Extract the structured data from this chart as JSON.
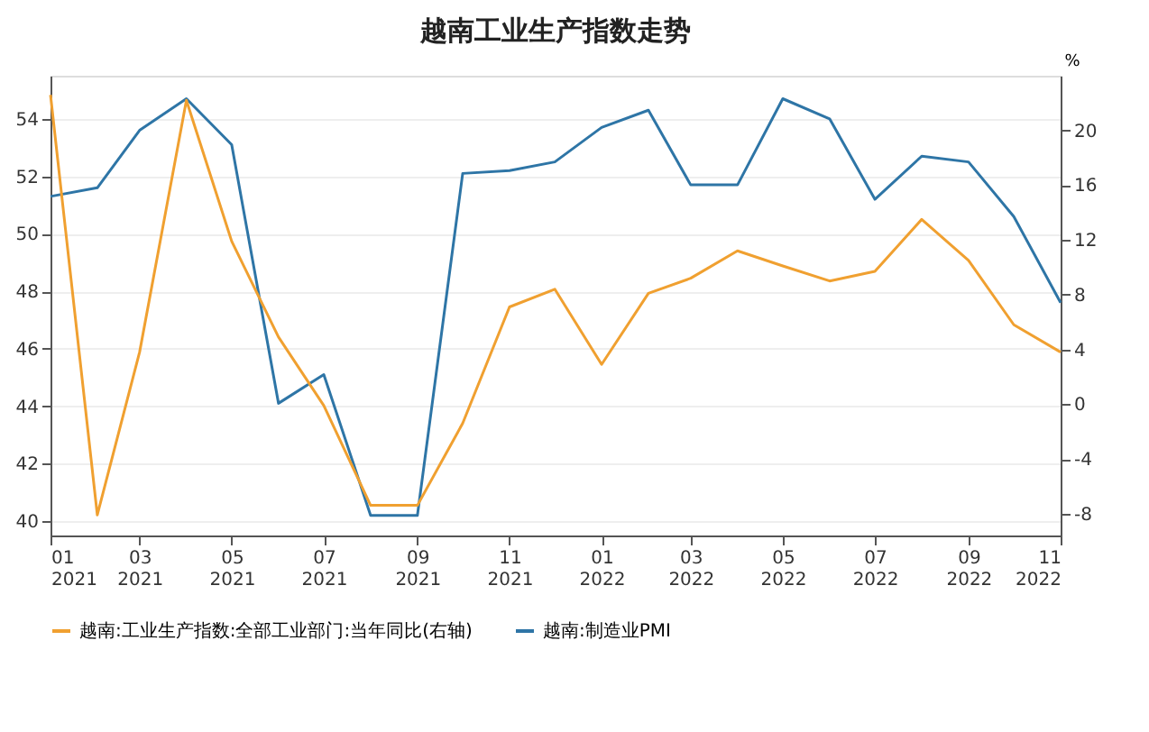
{
  "chart_data": {
    "type": "line",
    "title": "越南工业生产指数走势",
    "x": [
      "2021-01",
      "2021-02",
      "2021-03",
      "2021-04",
      "2021-05",
      "2021-06",
      "2021-07",
      "2021-08",
      "2021-09",
      "2021-10",
      "2021-11",
      "2021-12",
      "2022-01",
      "2022-02",
      "2022-03",
      "2022-04",
      "2022-05",
      "2022-06",
      "2022-07",
      "2022-08",
      "2022-09",
      "2022-10",
      "2022-11"
    ],
    "series": [
      {
        "name": "越南:工业生产指数:全部工业部门:当年同比(右轴)",
        "color": "#f0a030",
        "axis": "y2",
        "values": [
          22.6,
          -8.1,
          3.8,
          22.2,
          11.9,
          4.9,
          -0.1,
          -7.4,
          -7.4,
          -1.4,
          7.1,
          8.4,
          2.9,
          8.1,
          9.2,
          11.2,
          10.1,
          9.0,
          9.7,
          13.5,
          10.5,
          5.8,
          3.8
        ]
      },
      {
        "name": "越南:制造业PMI",
        "color": "#2e75a6",
        "values": [
          51.3,
          51.6,
          53.6,
          54.7,
          53.1,
          44.1,
          45.1,
          40.2,
          40.2,
          52.1,
          52.2,
          52.5,
          53.7,
          54.3,
          51.7,
          51.7,
          54.7,
          54.0,
          51.2,
          52.7,
          52.5,
          50.6,
          47.6
        ]
      }
    ],
    "xlim": [
      "2021-01",
      "2022-11"
    ],
    "xticks": [
      {
        "value": "2021-01",
        "label": "01\n2021"
      },
      {
        "value": "2021-03",
        "label": "03\n2021"
      },
      {
        "value": "2021-05",
        "label": "05\n2021"
      },
      {
        "value": "2021-07",
        "label": "07\n2021"
      },
      {
        "value": "2021-09",
        "label": "09\n2021"
      },
      {
        "value": "2021-11",
        "label": "11\n2021"
      },
      {
        "value": "2022-01",
        "label": "01\n2022"
      },
      {
        "value": "2022-03",
        "label": "03\n2022"
      },
      {
        "value": "2022-05",
        "label": "05\n2022"
      },
      {
        "value": "2022-07",
        "label": "07\n2022"
      },
      {
        "value": "2022-09",
        "label": "09\n2022"
      },
      {
        "value": "2022-11",
        "label": "11\n2022"
      }
    ],
    "ylim": [
      39.5,
      55.5
    ],
    "yticks": [
      40,
      42,
      44,
      46,
      48,
      50,
      52,
      54
    ],
    "y2lim": [
      -9.6,
      24
    ],
    "y2ticks": [
      -8,
      -4,
      0,
      4,
      8,
      12,
      16,
      20
    ],
    "y2label": "%",
    "grid": "y",
    "legend": "bottom",
    "marker": "none",
    "line_style": "solid"
  }
}
